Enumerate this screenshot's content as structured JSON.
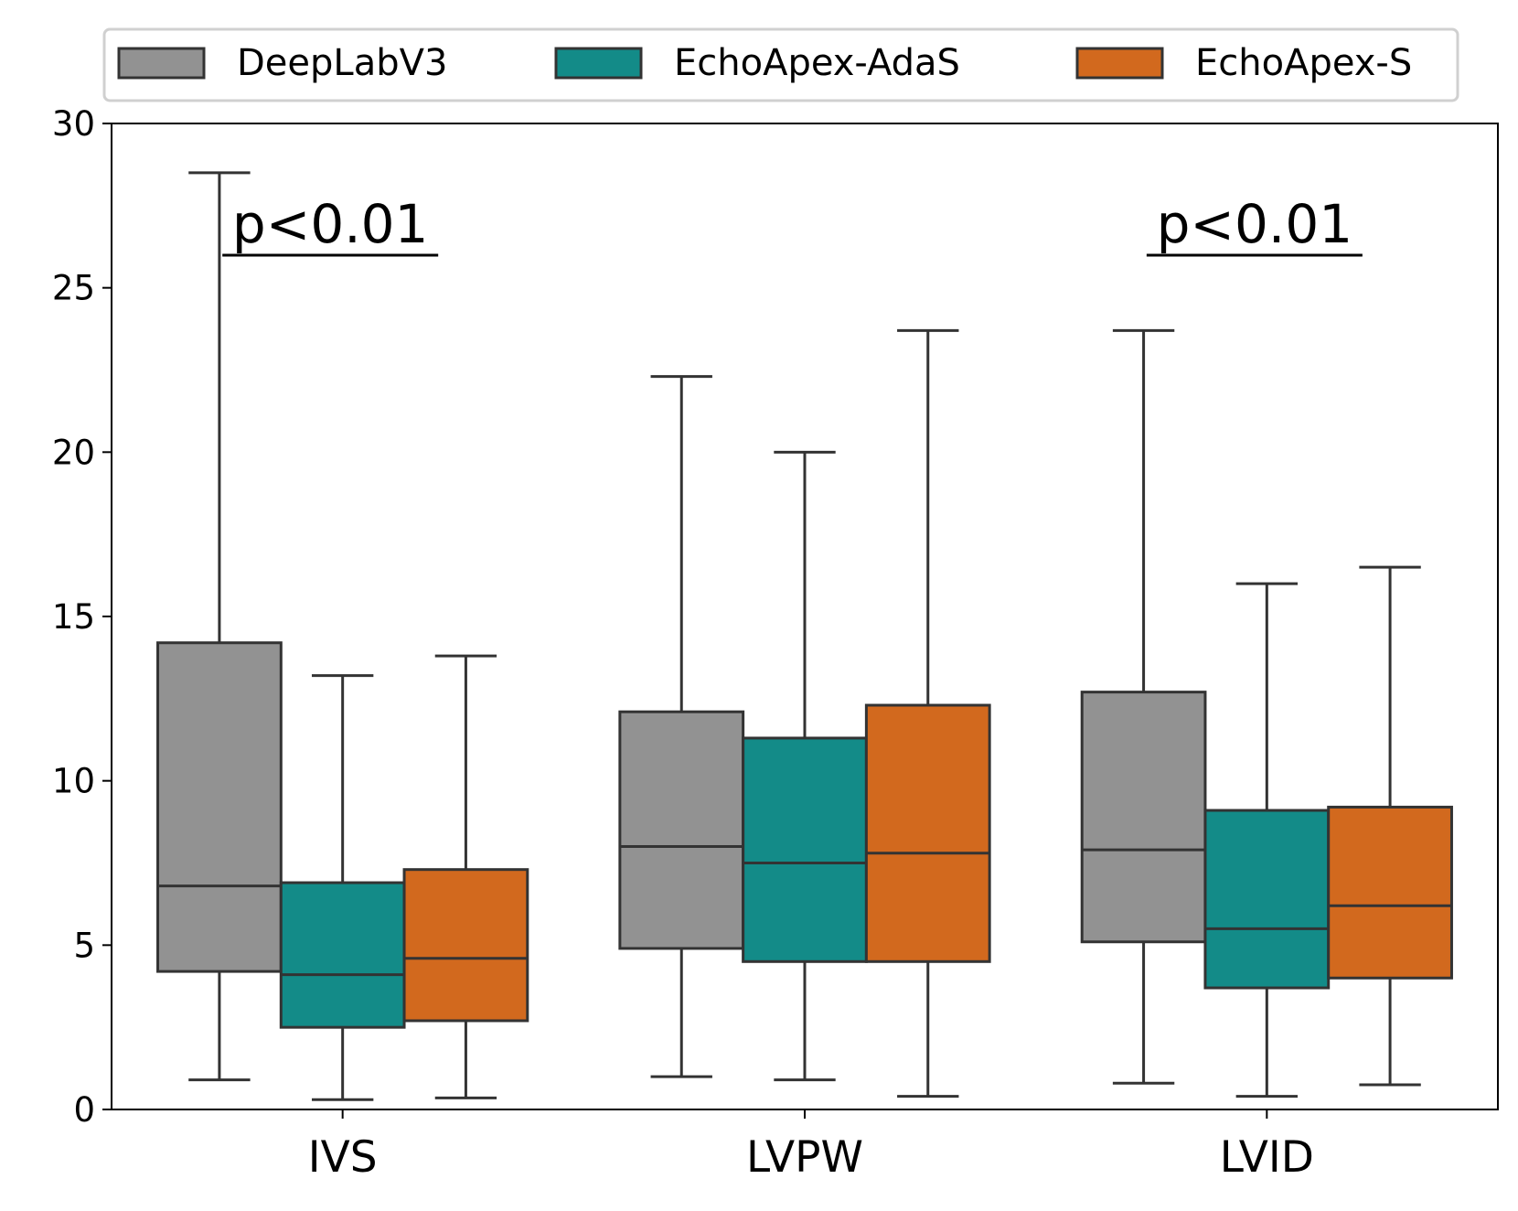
{
  "chart_data": {
    "type": "box",
    "categories": [
      "IVS",
      "LVPW",
      "LVID"
    ],
    "ylim": [
      0,
      30
    ],
    "yticks": [
      0,
      5,
      10,
      15,
      20,
      25,
      30
    ],
    "legend_position": "top",
    "series": [
      {
        "name": "DeepLabV3",
        "color": "#929292",
        "boxes": [
          {
            "whislo": 0.9,
            "q1": 4.2,
            "med": 6.8,
            "q3": 14.2,
            "whishi": 28.5
          },
          {
            "whislo": 1.0,
            "q1": 4.9,
            "med": 8.0,
            "q3": 12.1,
            "whishi": 22.3
          },
          {
            "whislo": 0.8,
            "q1": 5.1,
            "med": 7.9,
            "q3": 12.7,
            "whishi": 23.7
          }
        ]
      },
      {
        "name": "EchoApex-AdaS",
        "color": "#138b88",
        "boxes": [
          {
            "whislo": 0.3,
            "q1": 2.5,
            "med": 4.1,
            "q3": 6.9,
            "whishi": 13.2
          },
          {
            "whislo": 0.9,
            "q1": 4.5,
            "med": 7.5,
            "q3": 11.3,
            "whishi": 20.0
          },
          {
            "whislo": 0.4,
            "q1": 3.7,
            "med": 5.5,
            "q3": 9.1,
            "whishi": 16.0
          }
        ]
      },
      {
        "name": "EchoApex-S",
        "color": "#d2691e",
        "boxes": [
          {
            "whislo": 0.35,
            "q1": 2.7,
            "med": 4.6,
            "q3": 7.3,
            "whishi": 13.8
          },
          {
            "whislo": 0.4,
            "q1": 4.5,
            "med": 7.8,
            "q3": 12.3,
            "whishi": 23.7
          },
          {
            "whislo": 0.75,
            "q1": 4.0,
            "med": 6.2,
            "q3": 9.2,
            "whishi": 16.5
          }
        ]
      }
    ],
    "annotations": [
      {
        "text": "p<0.01",
        "category": "IVS"
      },
      {
        "text": "p<0.01",
        "category": "LVID"
      }
    ]
  }
}
